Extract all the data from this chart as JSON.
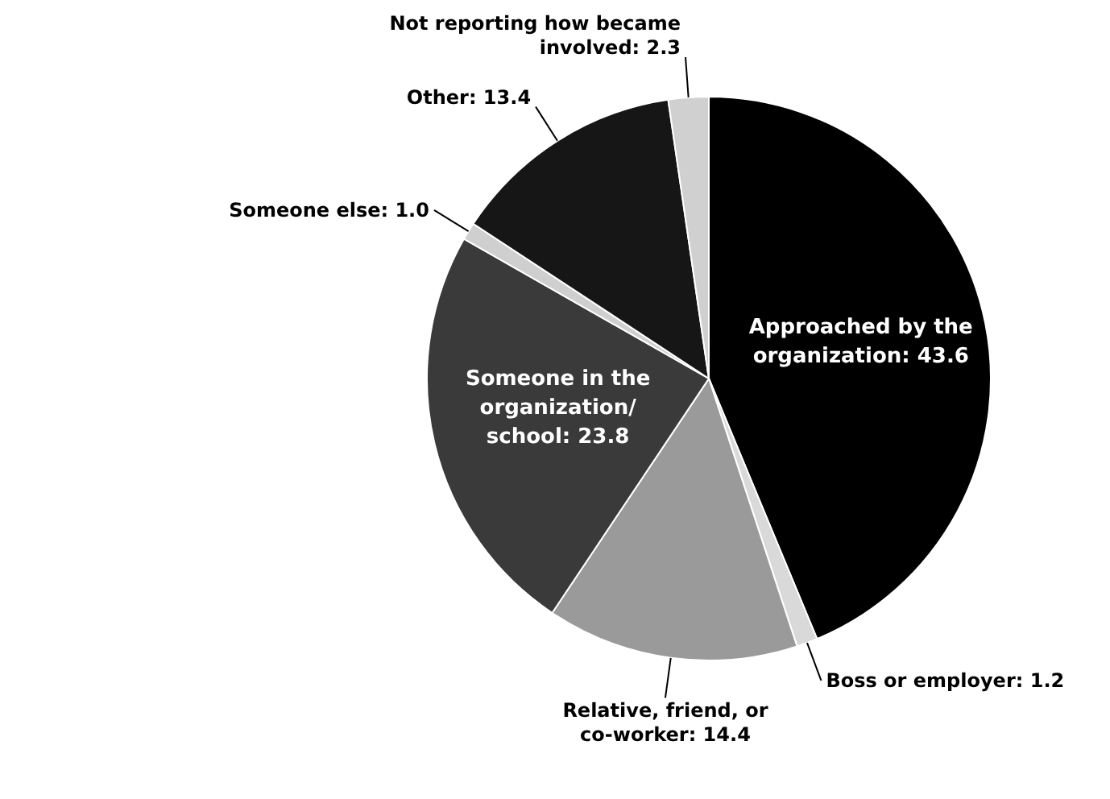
{
  "chart_data": {
    "type": "pie",
    "categories": [
      "Approached by the organization",
      "Boss or employer",
      "Relative, friend, or co-worker",
      "Someone in the organization/ school",
      "Someone else",
      "Other",
      "Not reporting how became involved"
    ],
    "values": [
      43.6,
      1.2,
      14.4,
      23.8,
      1.0,
      13.4,
      2.3
    ],
    "colors": [
      "#000000",
      "#d9d9d9",
      "#9a9a9a",
      "#3a3a3a",
      "#cfcfcf",
      "#161616",
      "#d0d0d0"
    ],
    "value_labels": [
      "43.6",
      "1.2",
      "14.4",
      "23.8",
      "1.0",
      "13.4",
      "2.3"
    ]
  }
}
